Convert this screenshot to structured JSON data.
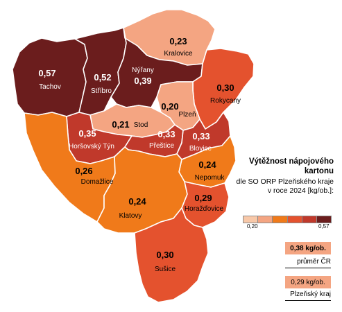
{
  "map": {
    "regions": [
      {
        "key": "tachov",
        "name": "Tachov",
        "value": "0,57",
        "color": "#6b1d1d"
      },
      {
        "key": "stribro",
        "name": "Stříbro",
        "value": "0,52",
        "color": "#6b1d1d"
      },
      {
        "key": "nyrany",
        "name": "Nýřany",
        "value": "0,39",
        "color": "#6b1d1d"
      },
      {
        "key": "kralovice",
        "name": "Kralovice",
        "value": "0,23",
        "color": "#f4a582"
      },
      {
        "key": "rokycany",
        "name": "Rokycany",
        "value": "0,30",
        "color": "#e4522e"
      },
      {
        "key": "plzen",
        "name": "Plzeň",
        "value": "0,20",
        "color": "#f4a582"
      },
      {
        "key": "stod",
        "name": "Stod",
        "value": "0,21",
        "color": "#f4a582"
      },
      {
        "key": "horsovsky",
        "name": "Horšovský Týn",
        "value": "0,35",
        "color": "#c0392b"
      },
      {
        "key": "prestice",
        "name": "Přeštice",
        "value": "0,33",
        "color": "#c0392b"
      },
      {
        "key": "blovice",
        "name": "Blovice",
        "value": "0,33",
        "color": "#c0392b"
      },
      {
        "key": "domazlice",
        "name": "Domažlice",
        "value": "0,26",
        "color": "#f07a1a"
      },
      {
        "key": "nepomuk",
        "name": "Nepomuk",
        "value": "0,24",
        "color": "#f07a1a"
      },
      {
        "key": "klatovy",
        "name": "Klatovy",
        "value": "0,24",
        "color": "#f07a1a"
      },
      {
        "key": "horazdovice",
        "name": "Horažďovice",
        "value": "0,29",
        "color": "#e4522e"
      },
      {
        "key": "susice",
        "name": "Sušice",
        "value": "0,30",
        "color": "#e4522e"
      }
    ]
  },
  "legend": {
    "title_line1": "Výtěžnost nápojového",
    "title_line2": "kartonu",
    "sub_line1": "dle SO ORP Plzeňského kraje",
    "sub_line2": "v roce 2024 [kg/ob.]:",
    "scale_colors": [
      "#f8c8a8",
      "#f4a582",
      "#f07a1a",
      "#e4522e",
      "#c0392b",
      "#6b1d1d"
    ],
    "min": "0,20",
    "max": "0,57"
  },
  "comparison": {
    "cr_value": "0,38 kg/ob.",
    "cr_label": "průměr ČR",
    "cr_color": "#f4a582",
    "kraj_value": "0,29 kg/ob.",
    "kraj_label": "Plzeňský kraj",
    "kraj_color": "#f4a582"
  }
}
